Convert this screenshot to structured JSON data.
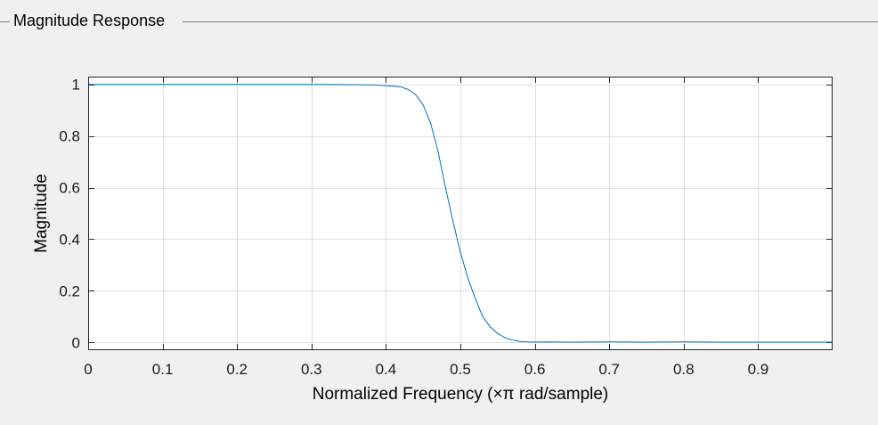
{
  "panel": {
    "title": "Magnitude Response"
  },
  "chart_data": {
    "type": "line",
    "xlabel": "Normalized Frequency (×π rad/sample)",
    "ylabel": "Magnitude",
    "xlim": [
      0,
      1
    ],
    "ylim": [
      -0.03,
      1.03
    ],
    "xticks": [
      0,
      0.1,
      0.2,
      0.3,
      0.4,
      0.5,
      0.6,
      0.7,
      0.8,
      0.9
    ],
    "xtick_labels": [
      "0",
      "0.1",
      "0.2",
      "0.3",
      "0.4",
      "0.5",
      "0.6",
      "0.7",
      "0.8",
      "0.9"
    ],
    "yticks": [
      0,
      0.2,
      0.4,
      0.6,
      0.8,
      1
    ],
    "ytick_labels": [
      "0",
      "0.2",
      "0.4",
      "0.6",
      "0.8",
      "1"
    ],
    "grid": true,
    "line_color": "#0072bd",
    "series": [
      {
        "x": [
          0,
          0.05,
          0.1,
          0.15,
          0.2,
          0.25,
          0.3,
          0.35,
          0.38,
          0.4,
          0.41,
          0.42,
          0.43,
          0.44,
          0.45,
          0.46,
          0.47,
          0.48,
          0.49,
          0.5,
          0.51,
          0.52,
          0.53,
          0.54,
          0.55,
          0.56,
          0.57,
          0.58,
          0.59,
          0.6,
          0.62,
          0.65,
          0.7,
          0.75,
          0.8,
          0.85,
          0.9,
          0.95,
          1.0
        ],
        "y": [
          1,
          1,
          1,
          1,
          1,
          1,
          1,
          0.999,
          0.998,
          0.995,
          0.993,
          0.99,
          0.98,
          0.96,
          0.92,
          0.85,
          0.74,
          0.6,
          0.47,
          0.35,
          0.25,
          0.17,
          0.1,
          0.06,
          0.035,
          0.018,
          0.009,
          0.004,
          0.002,
          0.001,
          0.002,
          0.001,
          0.002,
          0.001,
          0.002,
          0.001,
          0.001,
          0.001,
          0.001
        ]
      }
    ]
  }
}
